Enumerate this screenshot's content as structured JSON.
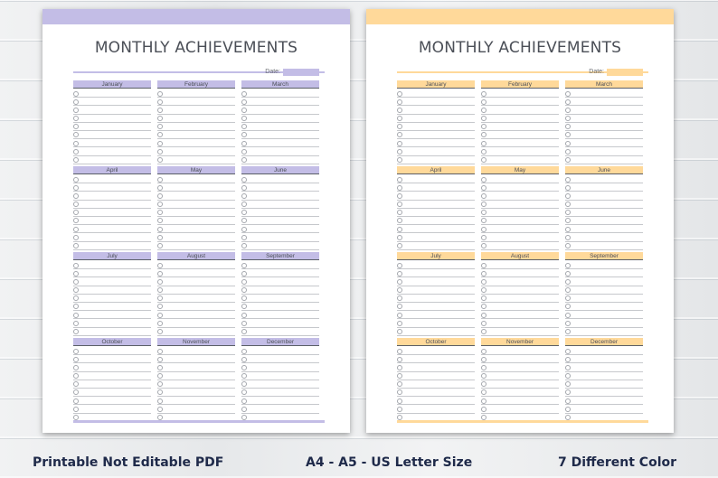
{
  "planner": {
    "title": "MONTHLY ACHIEVEMENTS",
    "date_label": "Date:",
    "lines_per_month": 9,
    "months": [
      "January",
      "February",
      "March",
      "April",
      "May",
      "June",
      "July",
      "August",
      "September",
      "October",
      "November",
      "December"
    ]
  },
  "themes": {
    "purple": {
      "accent": "#c3bde6",
      "accent_dark": "#b3acdf"
    },
    "orange": {
      "accent": "#ffd99a",
      "accent_dark": "#fdd08a"
    }
  },
  "captions": {
    "format": "Printable Not Editable PDF",
    "sizes": "A4 - A5 - US Letter Size",
    "colors": "7 Different Color"
  }
}
